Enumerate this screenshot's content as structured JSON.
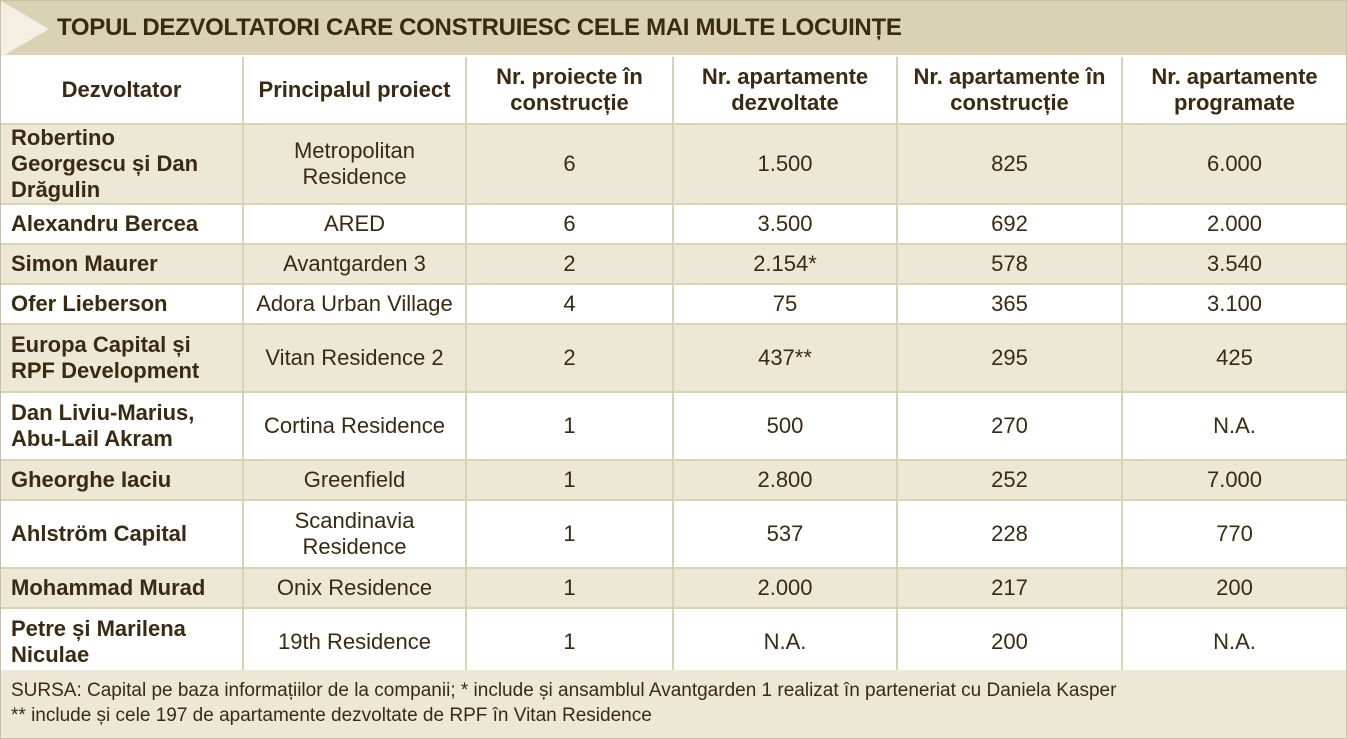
{
  "title": "TOPUL DEZVOLTATORI CARE CONSTRUIESC CELE MAI MULTE LOCUINȚE",
  "table": {
    "headers": [
      "Dezvoltator",
      "Principalul proiect",
      "Nr. proiecte în construcție",
      "Nr. apartamente dezvoltate",
      "Nr. apartamente în construcție",
      "Nr. apartamente programate"
    ],
    "rows": [
      [
        "Robertino Georgescu și Dan Drăgulin",
        "Metropolitan Residence",
        "6",
        "1.500",
        "825",
        "6.000"
      ],
      [
        "Alexandru Bercea",
        "ARED",
        "6",
        "3.500",
        "692",
        "2.000"
      ],
      [
        "Simon Maurer",
        "Avantgarden 3",
        "2",
        "2.154*",
        "578",
        "3.540"
      ],
      [
        "Ofer Lieberson",
        "Adora Urban Village",
        "4",
        "75",
        "365",
        "3.100"
      ],
      [
        "Europa Capital și RPF Development",
        "Vitan Residence 2",
        "2",
        "437**",
        "295",
        "425"
      ],
      [
        "Dan Liviu-Marius, Abu-Lail Akram",
        "Cortina Residence",
        "1",
        "500",
        "270",
        "N.A."
      ],
      [
        "Gheorghe Iaciu",
        "Greenfield",
        "1",
        "2.800",
        "252",
        "7.000"
      ],
      [
        "Ahlström Capital",
        "Scandinavia Residence",
        "1",
        "537",
        "228",
        "770"
      ],
      [
        "Mohammad Murad",
        "Onix Residence",
        "1",
        "2.000",
        "217",
        "200"
      ],
      [
        "Petre și Marilena Niculae",
        "19th Residence",
        "1",
        "N.A.",
        "200",
        "N.A."
      ]
    ]
  },
  "footer": {
    "line1": "SURSA: Capital pe baza informațiilor de la companii; * include și ansamblul Avantgarden 1 realizat în parteneriat cu Daniela Kasper",
    "line2": "** include și cele 197 de apartamente dezvoltate de RPF în Vitan Residence"
  },
  "colors": {
    "title_band": "#dad2b4",
    "row_shade": "#ede8d6",
    "text": "#3a2a12",
    "grid": "#dad2b4"
  }
}
